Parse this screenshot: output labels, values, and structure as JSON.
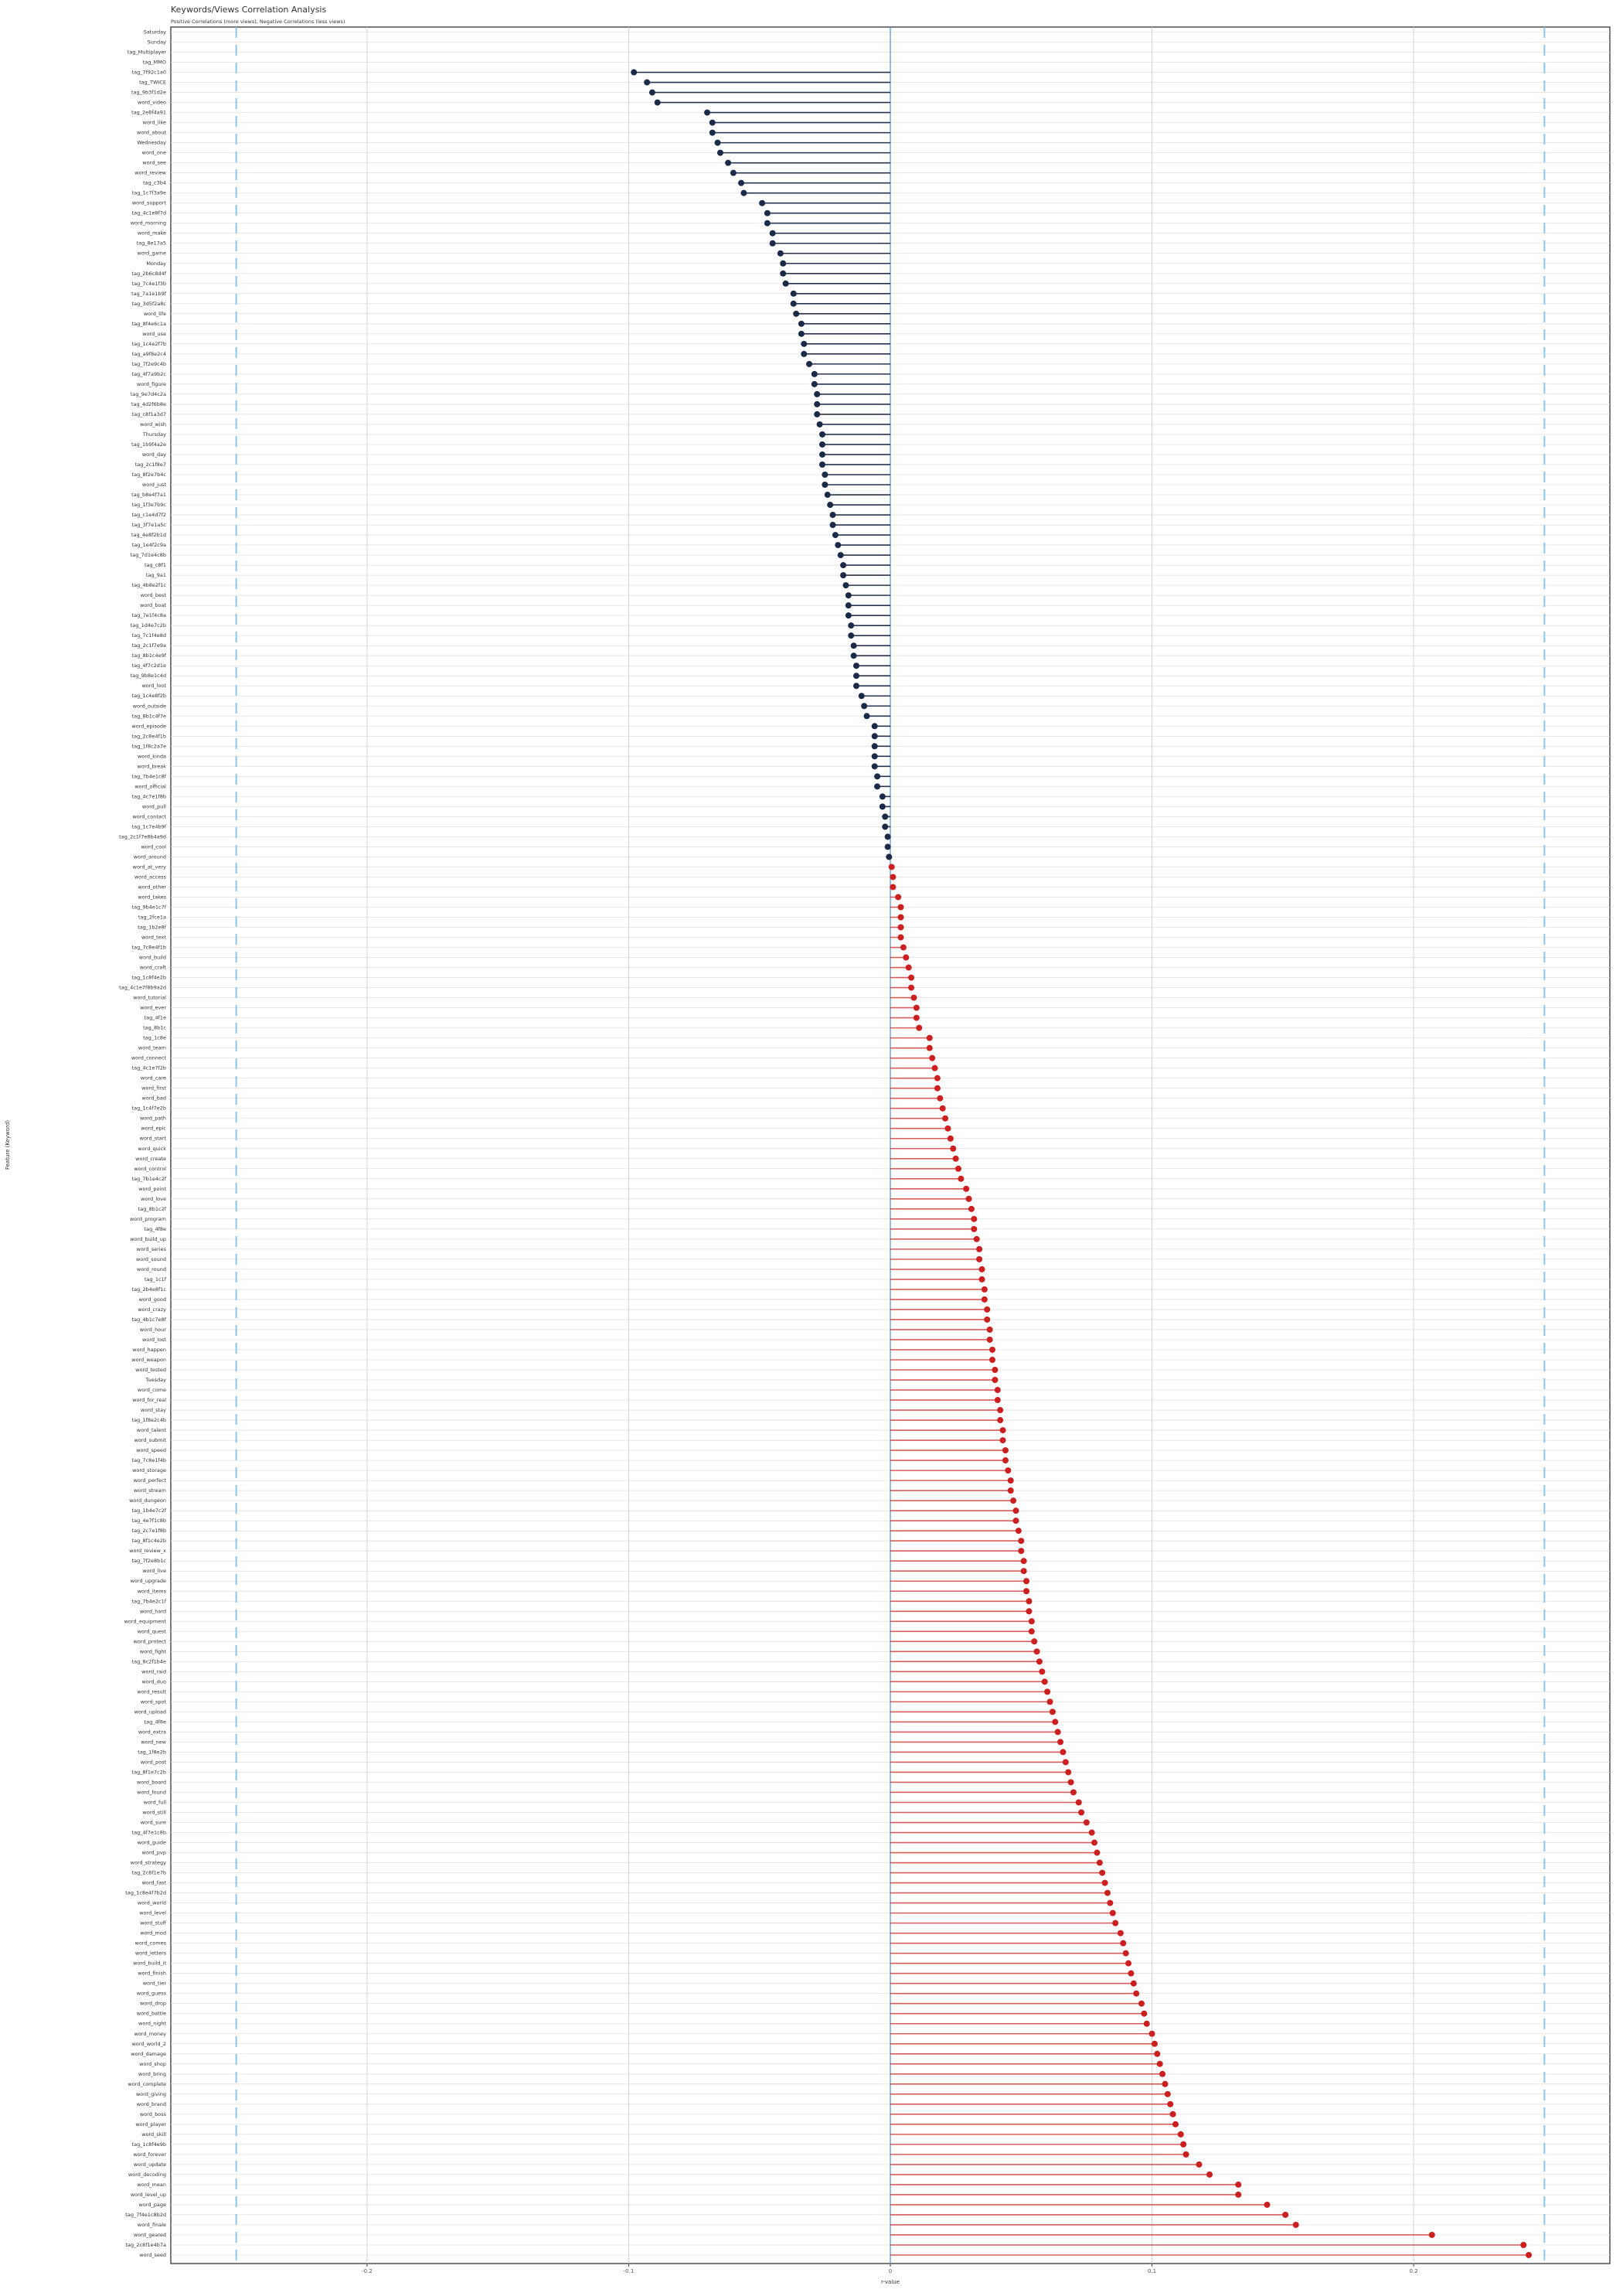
{
  "chart_data": {
    "type": "lollipop",
    "title": "Keywords/Views Correlation Analysis",
    "subtitle": "Positive Correlations (more views), Negative Correlations (less views)",
    "x_label": "r-value",
    "y_label": "Feature (Keyword)",
    "xlim": [
      -0.275,
      0.275
    ],
    "xticks": [
      -0.2,
      -0.1,
      0.0,
      0.1,
      0.2
    ],
    "threshold_lines": [
      -0.25,
      0.25
    ],
    "grid": true,
    "negative_color": "#1b2a47",
    "positive_color": "#cc1f1f",
    "threshold_color": "#8ec3ea",
    "categories": [
      "Saturday",
      "Sunday",
      "tag_Multiplayer",
      "tag_MMO",
      "tag_7f92c1a0",
      "tag_TWICE",
      "tag_9b3f1d2e",
      "word_video",
      "tag_2e8f4a91",
      "word_like",
      "word_about",
      "Wednesday",
      "word_one",
      "word_see",
      "word_review",
      "tag_c3b4",
      "tag_1c7f3a9e",
      "word_support",
      "tag_4c1e8f7d",
      "word_morning",
      "word_make",
      "tag_8e17a5",
      "word_game",
      "Monday",
      "tag_2b6c8d4f",
      "tag_7c4e1f3b",
      "tag_7a1e1b9f",
      "tag_3d5f2a8c",
      "word_life",
      "tag_8f4e6c1a",
      "word_use",
      "tag_1c4e2f7b",
      "tag_a9f8e2c4",
      "tag_7f2e9c4b",
      "tag_4f7a9b2c",
      "word_figure",
      "tag_9e7d4c2a",
      "tag_4d2f6b8e",
      "tag_c8f1a3d7",
      "word_wish",
      "Thursday",
      "tag_1b9f4a2e",
      "word_day",
      "tag_2c1f8e7",
      "tag_8f2e7b4c",
      "word_just",
      "tag_b8e4f7a1",
      "tag_1f3e7b9c",
      "tag_c1e4d7f2",
      "tag_3f7e1a5c",
      "tag_4e8f2b1d",
      "tag_1e4f2c9a",
      "tag_7d1e4c8b",
      "tag_c8f1",
      "tag_9a1",
      "tag_4b8e2f1c",
      "word_best",
      "word_boat",
      "tag_7e1f4c8a",
      "tag_1d4e7c2b",
      "tag_7c1f4e8d",
      "tag_2c1f7e9a",
      "tag_8b1c4e9f",
      "tag_4f7c2d1e",
      "tag_9b8e1c4d",
      "word_loot",
      "tag_1c4e8f2b",
      "word_outside",
      "tag_8b1c4f7e",
      "word_episode",
      "tag_2c8e4f1b",
      "tag_1f8c2a7e",
      "word_kinda",
      "word_break",
      "tag_7b4e1c8f",
      "word_official",
      "tag_4c7e1f8b",
      "word_pull",
      "word_contact",
      "tag_1c7e4b9f",
      "tag_2c1f7e8b4a9d",
      "word_cool",
      "word_around",
      "word_at_very",
      "word_access",
      "word_other",
      "word_takes",
      "tag_9b4e1c7f",
      "tag_2fce1a",
      "tag_1b2e8f",
      "word_text",
      "tag_7c8e4f1b",
      "word_build",
      "word_craft",
      "tag_1c8f4e2b",
      "tag_4c1e7f8b9a2d",
      "word_tutorial",
      "word_ever",
      "tag_4f1e",
      "tag_8b1c",
      "tag_1c8e",
      "word_team",
      "word_connect",
      "tag_4c1e7f2b",
      "word_care",
      "word_first",
      "word_bad",
      "tag_1c4f7e2b",
      "word_path",
      "word_epic",
      "word_start",
      "word_quick",
      "word_create",
      "word_control",
      "tag_7b1e4c2f",
      "word_point",
      "word_love",
      "tag_8b1c2f",
      "word_program",
      "tag_4f8e",
      "word_build_up",
      "word_series",
      "word_sound",
      "word_round",
      "tag_1c1f",
      "tag_2b4e8f1c",
      "word_good",
      "word_crazy",
      "tag_4b1c7e8f",
      "word_hour",
      "word_lost",
      "word_happen",
      "word_weapon",
      "word_tested",
      "Tuesday",
      "word_come",
      "word_for_real",
      "word_stay",
      "tag_1f8e2c4b",
      "word_talent",
      "word_submit",
      "word_speed",
      "tag_7c8e1f4b",
      "word_storage",
      "word_perfect",
      "word_stream",
      "word_dungeon",
      "tag_1b4e7c2f",
      "tag_4e7f1c8b",
      "tag_2c7e1f8b",
      "tag_8f1c4e2b",
      "word_review_x",
      "tag_7f2e8b1c",
      "word_live",
      "word_upgrade",
      "word_items",
      "tag_7b4e2c1f",
      "word_hard",
      "word_equipment",
      "word_quest",
      "word_protect",
      "word_fight",
      "tag_8c2f1b4e",
      "word_raid",
      "word_duo",
      "word_result",
      "word_spot",
      "word_upload",
      "tag_4f8e",
      "word_extra",
      "word_new",
      "tag_1f8e2b",
      "word_post",
      "tag_8f1e7c2b",
      "word_board",
      "word_found",
      "word_full",
      "word_still",
      "word_sure",
      "tag_4f7e1c8b",
      "word_guide",
      "word_pvp",
      "word_strategy",
      "tag_2c8f1e7b",
      "word_fast",
      "tag_1c8e4f7b2d",
      "word_world",
      "word_level",
      "word_stuff",
      "word_mod",
      "word_comes",
      "word_letters",
      "word_build_it",
      "word_finish",
      "word_tier",
      "word_guess",
      "word_drop",
      "word_battle",
      "word_night",
      "word_money",
      "word_world_2",
      "word_damage",
      "word_shop",
      "word_bring",
      "word_complete",
      "word_giving",
      "word_brand",
      "word_boss",
      "word_player",
      "word_skill",
      "tag_1c8f4e9b",
      "word_forever",
      "word_update",
      "word_decoding",
      "word_mean",
      "word_level_up",
      "word_page",
      "tag_7f4e1c8b2d",
      "word_finale",
      "word_geared",
      "tag_2c8f1e4b7a",
      "word_seed"
    ],
    "values": [
      null,
      null,
      null,
      null,
      -0.098,
      -0.093,
      -0.091,
      -0.089,
      -0.07,
      -0.068,
      -0.068,
      -0.066,
      -0.065,
      -0.062,
      -0.06,
      -0.057,
      -0.056,
      -0.049,
      -0.047,
      -0.047,
      -0.045,
      -0.045,
      -0.042,
      -0.041,
      -0.041,
      -0.04,
      -0.037,
      -0.037,
      -0.036,
      -0.034,
      -0.034,
      -0.033,
      -0.033,
      -0.031,
      -0.029,
      -0.029,
      -0.028,
      -0.028,
      -0.028,
      -0.027,
      -0.026,
      -0.026,
      -0.026,
      -0.026,
      -0.025,
      -0.025,
      -0.024,
      -0.023,
      -0.022,
      -0.022,
      -0.021,
      -0.02,
      -0.019,
      -0.018,
      -0.018,
      -0.017,
      -0.016,
      -0.016,
      -0.016,
      -0.015,
      -0.015,
      -0.014,
      -0.014,
      -0.013,
      -0.013,
      -0.013,
      -0.011,
      -0.01,
      -0.009,
      -0.006,
      -0.006,
      -0.006,
      -0.006,
      -0.006,
      -0.005,
      -0.005,
      -0.003,
      -0.003,
      -0.002,
      -0.002,
      -0.001,
      -0.001,
      -0.0005,
      0.0005,
      0.001,
      0.001,
      0.003,
      0.004,
      0.004,
      0.004,
      0.004,
      0.005,
      0.006,
      0.007,
      0.008,
      0.008,
      0.009,
      0.01,
      0.01,
      0.011,
      0.015,
      0.015,
      0.016,
      0.017,
      0.018,
      0.018,
      0.019,
      0.02,
      0.021,
      0.022,
      0.023,
      0.024,
      0.025,
      0.026,
      0.027,
      0.029,
      0.03,
      0.031,
      0.032,
      0.032,
      0.033,
      0.034,
      0.034,
      0.035,
      0.035,
      0.036,
      0.036,
      0.037,
      0.037,
      0.038,
      0.038,
      0.039,
      0.039,
      0.04,
      0.04,
      0.041,
      0.041,
      0.042,
      0.042,
      0.043,
      0.043,
      0.044,
      0.044,
      0.045,
      0.046,
      0.046,
      0.047,
      0.048,
      0.048,
      0.049,
      0.05,
      0.05,
      0.051,
      0.051,
      0.052,
      0.052,
      0.053,
      0.053,
      0.054,
      0.054,
      0.055,
      0.056,
      0.057,
      0.058,
      0.059,
      0.06,
      0.061,
      0.062,
      0.063,
      0.064,
      0.065,
      0.066,
      0.067,
      0.068,
      0.069,
      0.07,
      0.072,
      0.073,
      0.075,
      0.077,
      0.078,
      0.079,
      0.08,
      0.081,
      0.082,
      0.083,
      0.084,
      0.085,
      0.086,
      0.088,
      0.089,
      0.09,
      0.091,
      0.092,
      0.093,
      0.094,
      0.096,
      0.097,
      0.098,
      0.1,
      0.101,
      0.102,
      0.103,
      0.104,
      0.105,
      0.106,
      0.107,
      0.108,
      0.109,
      0.111,
      0.112,
      0.113,
      0.118,
      0.122,
      0.133,
      0.133,
      0.144,
      0.151,
      0.155,
      0.207,
      0.242,
      0.244
    ]
  }
}
